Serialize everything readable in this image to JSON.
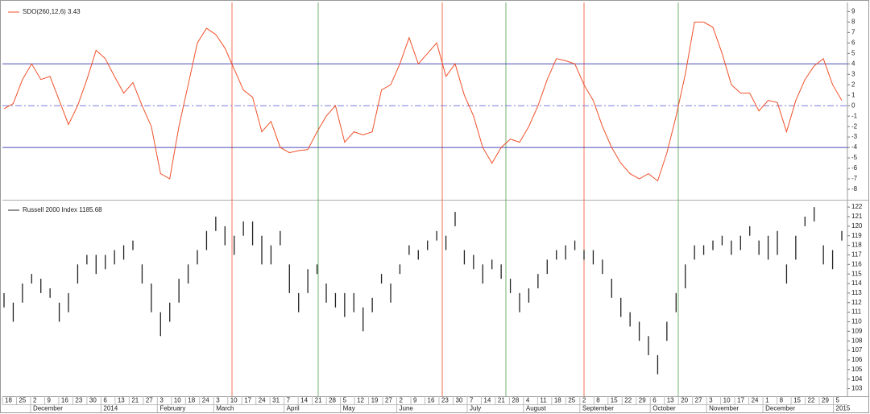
{
  "chart_data": [
    {
      "type": "line",
      "series": [
        {
          "name": "SDO(260,12,6) 3.43",
          "color": "#f0502a",
          "values": [
            -0.3,
            0.2,
            2.5,
            4,
            2.5,
            2.8,
            0.5,
            -1.8,
            0,
            2.5,
            5.3,
            4.5,
            2.8,
            1.2,
            2.2,
            0,
            -2,
            -6.5,
            -7,
            -2,
            2,
            6,
            7.4,
            6.8,
            5.5,
            3.5,
            1.5,
            0.8,
            -2.5,
            -1.5,
            -4,
            -4.5,
            -4.3,
            -4.2,
            -2.5,
            -1,
            0,
            -3.5,
            -2.5,
            -2.8,
            -2.5,
            1.5,
            2,
            4,
            6.5,
            4,
            5,
            6,
            2.8,
            4,
            1,
            -1,
            -4,
            -5.5,
            -4,
            -3.2,
            -3.5,
            -2,
            0,
            2.5,
            4.5,
            4.3,
            4,
            2,
            0.5,
            -2,
            -4,
            -5.5,
            -6.5,
            -7,
            -6.5,
            -7.2,
            -4.5,
            -1,
            3,
            8,
            8,
            7.5,
            5,
            2,
            1.2,
            1.2,
            -0.5,
            0.5,
            0.3,
            -2.5,
            0.5,
            2.5,
            3.8,
            4.5,
            2,
            0.5
          ]
        }
      ],
      "ylim": [
        -9,
        9.8
      ],
      "yticks": [
        9,
        8,
        7,
        6,
        5,
        4,
        3,
        2,
        1,
        0,
        -1,
        -2,
        -3,
        -4,
        -5,
        -6,
        -7,
        -8
      ],
      "reference_lines": [
        {
          "value": 4,
          "color": "#4a4ab8",
          "dashed": false
        },
        {
          "value": 0,
          "color": "#7a7ad8",
          "dashed": true
        },
        {
          "value": -4,
          "color": "#4a4ab8",
          "dashed": false
        }
      ]
    },
    {
      "type": "range-bar",
      "series": [
        {
          "name": "Russell 2000 Index 1185.68",
          "color": "#222222",
          "lows": [
            111.5,
            110,
            112,
            114,
            113,
            112.5,
            110,
            111,
            114,
            116,
            115,
            115.5,
            116,
            116.5,
            117.5,
            114,
            111,
            108.5,
            110,
            112,
            114,
            116,
            117.5,
            119.5,
            118,
            117,
            119,
            118,
            116,
            116,
            118,
            113,
            111,
            113,
            115,
            112,
            111.5,
            110.5,
            111,
            109,
            111,
            114,
            112,
            115,
            117,
            116.5,
            117.5,
            118.5,
            117.5,
            120,
            116,
            115.5,
            114,
            115.5,
            114.5,
            113,
            111,
            112,
            113.5,
            115,
            116.5,
            116.5,
            117.5,
            116.5,
            116,
            115,
            112.5,
            110.5,
            109.5,
            108,
            106.5,
            104.5,
            108,
            111,
            113.5,
            116.5,
            117,
            117.5,
            118,
            117,
            117.5,
            119,
            117,
            116.5,
            117,
            114,
            116.5,
            120,
            120.5,
            116,
            115.5,
            118.5
          ],
          "highs": [
            113,
            112,
            114,
            115,
            114.5,
            113.5,
            112,
            113,
            116,
            117,
            117,
            117,
            117.5,
            118,
            118.5,
            116,
            114,
            111,
            112,
            114.5,
            116,
            117.5,
            119.5,
            121,
            120,
            119,
            120.5,
            120.5,
            119,
            118,
            119.5,
            116,
            113,
            115.5,
            116,
            114,
            113,
            113,
            113,
            111.5,
            112.5,
            115,
            114,
            116,
            118,
            117.5,
            118.5,
            119.5,
            119,
            121.5,
            117.5,
            117,
            116,
            116.5,
            116,
            114.5,
            113,
            113.5,
            115,
            116.5,
            117.5,
            118,
            118.5,
            117.5,
            117.5,
            116.5,
            114.5,
            112.5,
            111,
            110,
            108.5,
            106.5,
            110,
            113,
            116,
            118,
            118,
            118.5,
            119,
            118.5,
            119,
            120,
            118.5,
            119,
            119.5,
            116,
            119,
            121,
            122,
            118,
            117.5,
            119.5
          ]
        }
      ],
      "ylim": [
        102.2,
        122.6
      ],
      "yticks": [
        122,
        121,
        120,
        119,
        118,
        117,
        116,
        115,
        114,
        113,
        112,
        111,
        110,
        109,
        108,
        107,
        106,
        105,
        104,
        103
      ],
      "categories": [
        "18",
        "25",
        "2",
        "9",
        "16",
        "23",
        "30",
        "6",
        "13",
        "21",
        "27",
        "3",
        "10",
        "18",
        "24",
        "3",
        "10",
        "17",
        "24",
        "31",
        "7",
        "14",
        "21",
        "28",
        "5",
        "12",
        "19",
        "27",
        "2",
        "9",
        "16",
        "23",
        "30",
        "7",
        "14",
        "21",
        "28",
        "4",
        "11",
        "18",
        "25",
        "2",
        "8",
        "15",
        "22",
        "29",
        "6",
        "13",
        "20",
        "27",
        "3",
        "10",
        "17",
        "24",
        "1",
        "8",
        "15",
        "22",
        "29",
        "5"
      ],
      "months": [
        "December",
        "2014",
        "February",
        "March",
        "April",
        "May",
        "June",
        "July",
        "August",
        "September",
        "October",
        "November",
        "December",
        "2015"
      ]
    }
  ]
}
